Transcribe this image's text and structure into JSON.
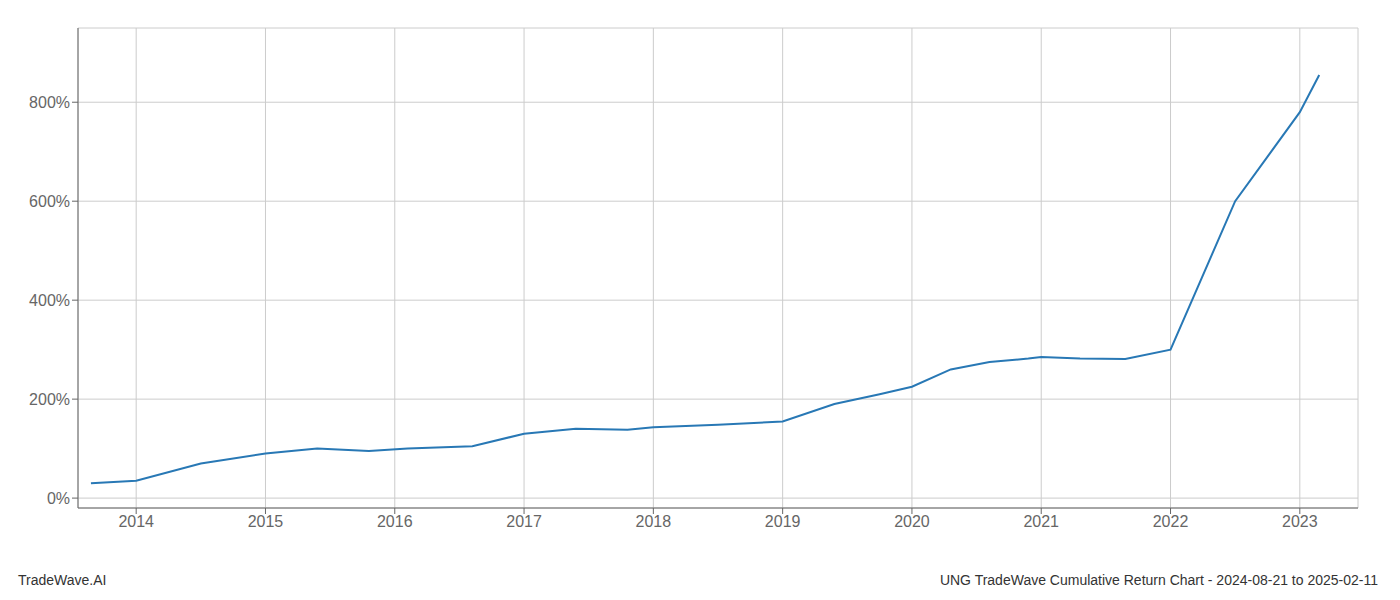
{
  "chart_data": {
    "type": "line",
    "title": "UNG TradeWave Cumulative Return Chart - 2024-08-21 to 2025-02-11",
    "annotations": [
      "TradeWave.AI"
    ],
    "x": [
      2013.65,
      2014.0,
      2014.5,
      2015.0,
      2015.4,
      2015.8,
      2016.1,
      2016.6,
      2017.0,
      2017.4,
      2017.8,
      2018.0,
      2018.5,
      2019.0,
      2019.4,
      2019.75,
      2020.0,
      2020.3,
      2020.6,
      2020.9,
      2021.0,
      2021.3,
      2021.65,
      2022.0,
      2022.5,
      2023.0,
      2023.15
    ],
    "values": [
      30,
      35,
      70,
      90,
      100,
      95,
      100,
      105,
      130,
      140,
      138,
      143,
      148,
      155,
      190,
      210,
      225,
      260,
      275,
      282,
      285,
      282,
      281,
      300,
      600,
      780,
      855
    ],
    "color": "#2878b5",
    "xlim": [
      2013.55,
      2023.45
    ],
    "xticks": [
      2014,
      2015,
      2016,
      2017,
      2018,
      2019,
      2020,
      2021,
      2022,
      2023
    ],
    "ylim": [
      -20,
      950
    ],
    "yticks": [
      {
        "value": 0,
        "label": "0%"
      },
      {
        "value": 200,
        "label": "200%"
      },
      {
        "value": 400,
        "label": "400%"
      },
      {
        "value": 600,
        "label": "600%"
      },
      {
        "value": 800,
        "label": "800%"
      }
    ],
    "grid": true
  }
}
